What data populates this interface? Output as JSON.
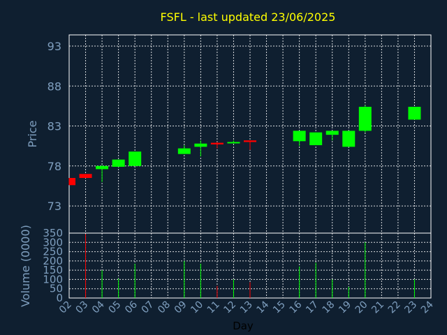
{
  "chart_data": [
    {
      "type": "candlestick",
      "title": "FSFL - last updated 23/06/2025",
      "ylabel": "Price",
      "ylim": [
        69.6,
        94.4
      ],
      "yticks": [
        73,
        78,
        83,
        88,
        93
      ],
      "candles": [
        {
          "day": "02",
          "open": 76.5,
          "close": 75.6,
          "high": 76.5,
          "low": 75.6
        },
        {
          "day": "03",
          "open": 77.0,
          "close": 76.5,
          "high": 77.0,
          "low": 76.5
        },
        {
          "day": "04",
          "open": 77.6,
          "close": 78.0,
          "high": 78.1,
          "low": 76.0
        },
        {
          "day": "05",
          "open": 77.9,
          "close": 78.8,
          "high": 78.8,
          "low": 77.9
        },
        {
          "day": "06",
          "open": 78.0,
          "close": 79.8,
          "high": 79.8,
          "low": 78.0
        },
        {
          "day": "09",
          "open": 79.5,
          "close": 80.2,
          "high": 80.6,
          "low": 79.5
        },
        {
          "day": "10",
          "open": 80.4,
          "close": 80.8,
          "high": 81.2,
          "low": 79.2
        },
        {
          "day": "11",
          "open": 80.9,
          "close": 80.7,
          "high": 81.0,
          "low": 80.2
        },
        {
          "day": "12",
          "open": 80.9,
          "close": 81.0,
          "high": 81.2,
          "low": 80.9
        },
        {
          "day": "13",
          "open": 81.2,
          "close": 81.0,
          "high": 81.2,
          "low": 80.0
        },
        {
          "day": "16",
          "open": 81.1,
          "close": 82.4,
          "high": 82.4,
          "low": 80.5
        },
        {
          "day": "17",
          "open": 80.6,
          "close": 82.2,
          "high": 82.2,
          "low": 80.6
        },
        {
          "day": "18",
          "open": 81.9,
          "close": 82.4,
          "high": 82.4,
          "low": 81.2
        },
        {
          "day": "19",
          "open": 80.4,
          "close": 82.4,
          "high": 82.4,
          "low": 80.4
        },
        {
          "day": "20",
          "open": 82.4,
          "close": 85.4,
          "high": 85.6,
          "low": 82.2
        },
        {
          "day": "23",
          "open": 83.8,
          "close": 85.4,
          "high": 85.4,
          "low": 83.8
        }
      ],
      "grid": true
    },
    {
      "type": "bar",
      "xlabel": "Day",
      "ylabel": "Volume (0000)",
      "ylim": [
        0,
        350
      ],
      "yticks": [
        0,
        50,
        100,
        150,
        200,
        250,
        300,
        350
      ],
      "categories": [
        "02",
        "03",
        "04",
        "05",
        "06",
        "07",
        "08",
        "09",
        "10",
        "11",
        "12",
        "13",
        "14",
        "15",
        "16",
        "17",
        "18",
        "19",
        "20",
        "21",
        "22",
        "23",
        "24"
      ],
      "values": [
        0,
        345,
        150,
        105,
        185,
        0,
        0,
        200,
        185,
        65,
        100,
        85,
        0,
        0,
        170,
        190,
        100,
        60,
        300,
        0,
        0,
        100,
        0
      ],
      "bar_colors": [
        "#00ff00",
        "#ff0000",
        "#00ff00",
        "#00ff00",
        "#00ff00",
        "#00ff00",
        "#00ff00",
        "#00ff00",
        "#00ff00",
        "#ff0000",
        "#00ff00",
        "#ff0000",
        "#00ff00",
        "#00ff00",
        "#00ff00",
        "#00ff00",
        "#00ff00",
        "#00ff00",
        "#00ff00",
        "#00ff00",
        "#00ff00",
        "#00ff00",
        "#00ff00"
      ],
      "grid": true
    }
  ],
  "colors": {
    "background": "#0f1f30",
    "up": "#00ff00",
    "down": "#ff0000",
    "title": "#ffff00",
    "axis_text": "#7f9fbf",
    "grid": "#ffffff"
  }
}
